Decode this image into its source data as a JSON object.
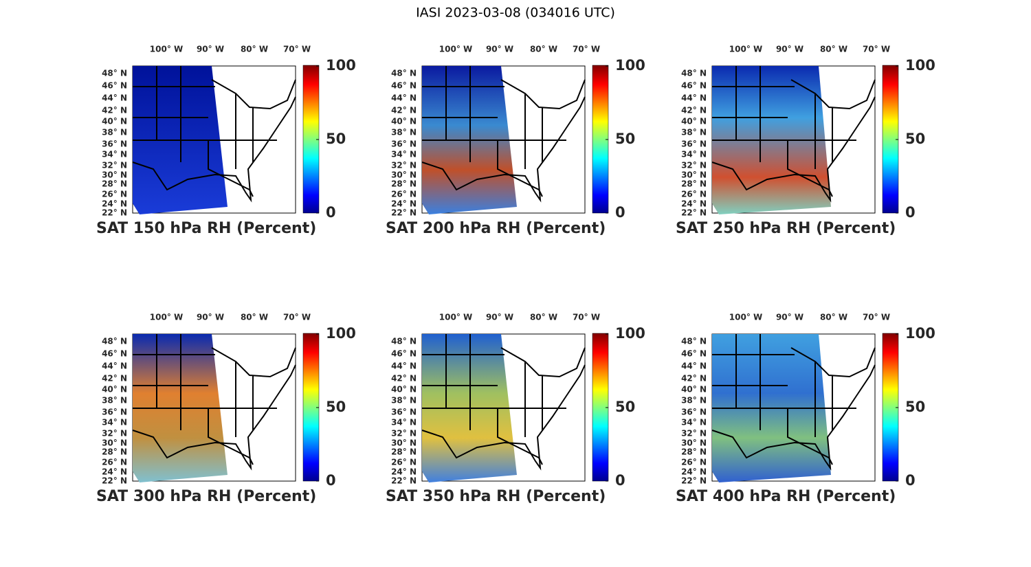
{
  "title": "IASI 2023-03-08 (034016 UTC)",
  "panels": [
    {
      "title": "SAT 150 hPa RH (Percent)"
    },
    {
      "title": "SAT 200 hPa RH (Percent)"
    },
    {
      "title": "SAT 250 hPa RH (Percent)"
    },
    {
      "title": "SAT 300 hPa RH (Percent)"
    },
    {
      "title": "SAT 350 hPa RH (Percent)"
    },
    {
      "title": "SAT 400 hPa RH (Percent)"
    }
  ],
  "lon_labels": [
    "100° W",
    "90° W",
    "80° W",
    "70° W"
  ],
  "lat_labels": [
    "48° N",
    "46° N",
    "44° N",
    "42° N",
    "40° N",
    "38° N",
    "36° N",
    "34° N",
    "32° N",
    "30° N",
    "28° N",
    "26° N",
    "24° N",
    "22° N"
  ],
  "colorbar": {
    "lim": [
      0,
      100
    ],
    "ticks": [
      0,
      50,
      100
    ]
  }
}
